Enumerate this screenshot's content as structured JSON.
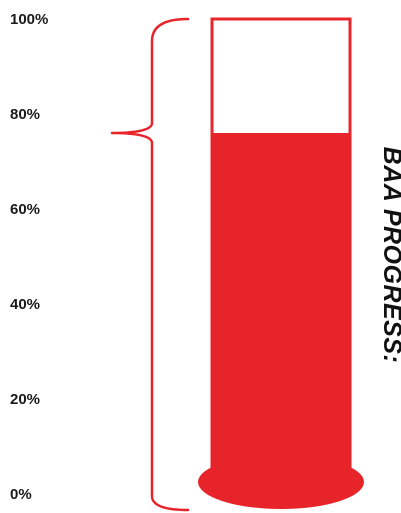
{
  "chart_data": {
    "type": "thermometer",
    "title": "BAA PROGRESS:",
    "value_percent": 76,
    "ylim": [
      0,
      100
    ],
    "ticks": [
      {
        "value": 100,
        "label": "100%"
      },
      {
        "value": 80,
        "label": "80%"
      },
      {
        "value": 60,
        "label": "60%"
      },
      {
        "value": 40,
        "label": "40%"
      },
      {
        "value": 20,
        "label": "20%"
      },
      {
        "value": 0,
        "label": "0%"
      }
    ],
    "colors": {
      "fill": "#e8242b",
      "outline": "#e8242b",
      "bracket": "#e8242b",
      "empty": "#ffffff",
      "text": "#1a1a1a"
    }
  }
}
